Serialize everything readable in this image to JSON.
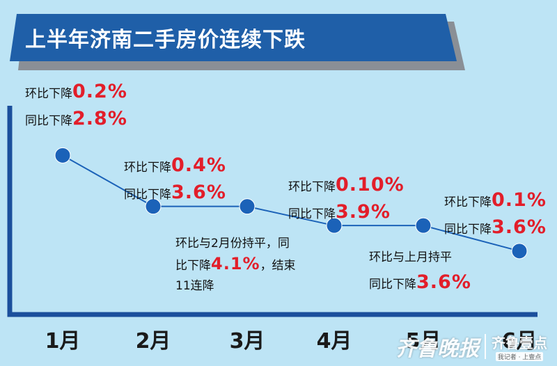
{
  "title": "上半年济南二手房价连续下跌",
  "colors": {
    "background": "#bde4f5",
    "banner": "#1f5fa8",
    "banner_shadow": "#8a8f96",
    "axis": "#1b4f9c",
    "line": "#1b62b8",
    "point": "#1b62b8",
    "highlight": "#e21e2a"
  },
  "annotations": [
    {
      "row1_text": "环比下降",
      "row1_value": "0.2%",
      "row2_text": "同比下降",
      "row2_value": "2.8%"
    },
    {
      "row1_text": "环比下降",
      "row1_value": "0.4%",
      "row2_text": "同比下降",
      "row2_value": "3.6%"
    },
    {
      "line1": "环比与2月份持平，同",
      "line2_pre": "比下降",
      "line2_value": "4.1%",
      "line2_post": "，结束",
      "line3": "11连降"
    },
    {
      "row1_text": "环比下降",
      "row1_value": "0.10%",
      "row2_text": "同比下降",
      "row2_value": "3.9%"
    },
    {
      "row1_text": "环比与上月持平",
      "row2_text": "同比下降",
      "row2_value": "3.6%"
    },
    {
      "row1_text": "环比下降",
      "row1_value": "0.1%",
      "row2_text": "同比下降",
      "row2_value": "3.6%"
    }
  ],
  "watermark": {
    "brand1": "齐鲁晚报",
    "brand2": "齐鲁壹点",
    "tagline": "我记者 · 上壹点"
  },
  "chart_data": {
    "type": "line",
    "title": "上半年济南二手房价连续下跌",
    "categories": [
      "1月",
      "2月",
      "3月",
      "4月",
      "5月",
      "6月"
    ],
    "series": [
      {
        "yoy_change_pct": [
          -2.8,
          -3.6,
          -4.1,
          -3.9,
          -3.6,
          -3.6
        ],
        "mom_change_pct": [
          -0.2,
          -0.4,
          0,
          -0.1,
          0,
          -0.1
        ],
        "values": [
          -2.8,
          -3.6,
          -3.6,
          -3.9,
          -3.9,
          -4.3
        ]
      }
    ],
    "xlabel": "",
    "ylabel": "",
    "grid": false,
    "legend": "none"
  }
}
